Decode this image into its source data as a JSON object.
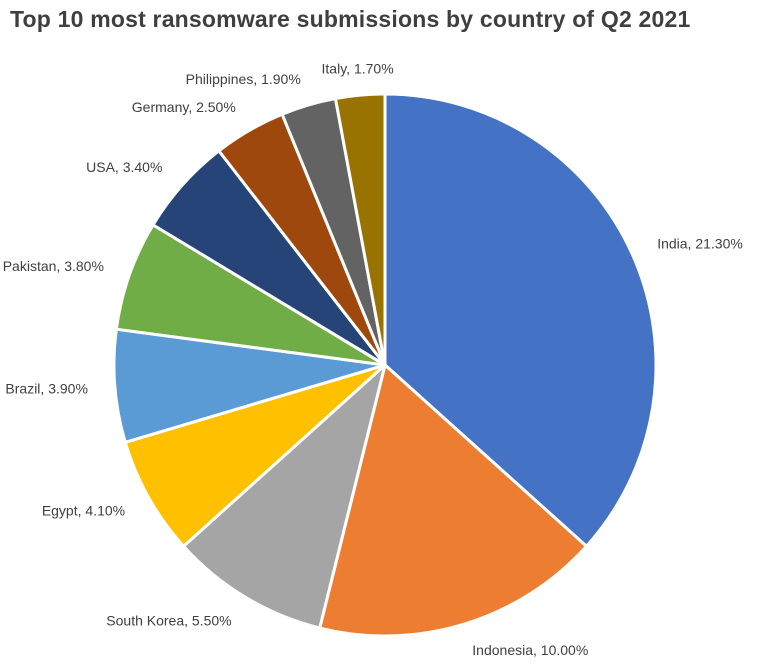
{
  "page": {
    "background_color": "#FFFFFF",
    "title_color": "#3F3F3F",
    "label_color": "#404040",
    "slice_border_color": "#FFFFFF"
  },
  "chart_data": {
    "type": "pie",
    "title": "Top 10 most ransomware submissions by country of Q2 2021",
    "categories": [
      "India",
      "Indonesia",
      "South Korea",
      "Egypt",
      "Brazil",
      "Pakistan",
      "USA",
      "Germany",
      "Philippines",
      "Italy"
    ],
    "values": [
      21.3,
      10.0,
      5.5,
      4.1,
      3.9,
      3.8,
      3.4,
      2.5,
      1.9,
      1.7
    ],
    "labels": [
      "India, 21.30%",
      "Indonesia, 10.00%",
      "South Korea, 5.50%",
      "Egypt, 4.10%",
      "Brazil, 3.90%",
      "Pakistan, 3.80%",
      "USA, 3.40%",
      "Germany, 2.50%",
      "Philippines, 1.90%",
      "Italy, 1.70%"
    ],
    "colors": [
      "#4472C4",
      "#ED7D31",
      "#A5A5A5",
      "#FFC000",
      "#5B9BD5",
      "#70AD47",
      "#264478",
      "#9E480E",
      "#636363",
      "#997300"
    ],
    "values_unit": "%",
    "start_angle_deg": 0,
    "direction": "clockwise",
    "label_position": "outside",
    "legend": "none",
    "grid": "off"
  }
}
